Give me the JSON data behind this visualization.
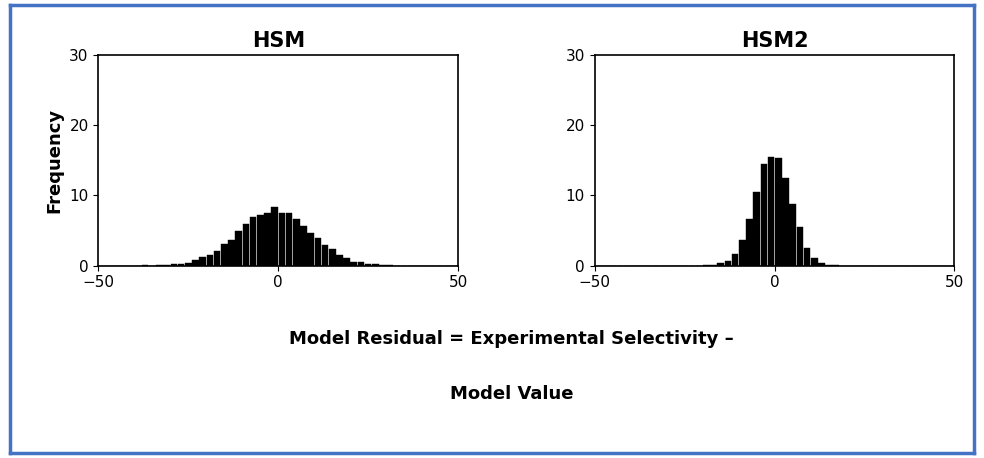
{
  "title1": "HSM",
  "title2": "HSM2",
  "ylabel": "Frequency",
  "xlabel_line1": "Model Residual = Experimental Selectivity –",
  "xlabel_line2": "Model Value",
  "xlim": [
    -50,
    50
  ],
  "ylim": [
    0,
    30
  ],
  "yticks": [
    0,
    10,
    20,
    30
  ],
  "xticks": [
    -50,
    0,
    50
  ],
  "hsm_mean": -1.0,
  "hsm_std": 10.0,
  "hsm2_mean": -0.5,
  "hsm2_std": 5.0,
  "n_samples": 8000,
  "n_bins": 50,
  "bar_color": "#000000",
  "bg_color": "#ffffff",
  "border_color": "#4472c4",
  "title_fontsize": 15,
  "label_fontsize": 13,
  "tick_fontsize": 11,
  "seed": 42
}
